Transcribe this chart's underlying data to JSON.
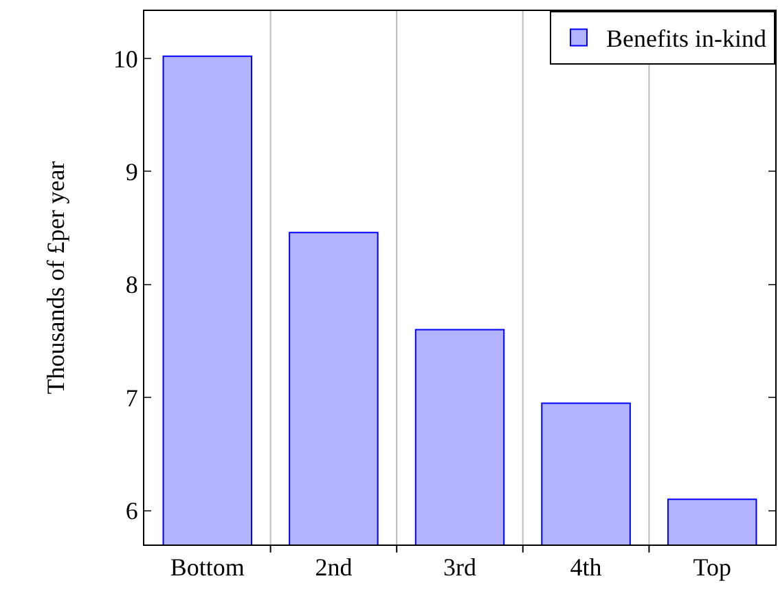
{
  "chart_data": {
    "type": "bar",
    "ylabel": "Thousands of £per year",
    "categories": [
      "Bottom",
      "2nd",
      "3rd",
      "4th",
      "Top"
    ],
    "series": [
      {
        "name": "Benefits in-kind",
        "color": "#b3b3ff",
        "values": [
          10.02,
          8.46,
          7.6,
          6.95,
          6.1
        ]
      }
    ],
    "ylim": [
      5.7,
      10.42
    ],
    "yticks": [
      6,
      7,
      8,
      9,
      10
    ],
    "grid": "x",
    "legend": "top right"
  }
}
